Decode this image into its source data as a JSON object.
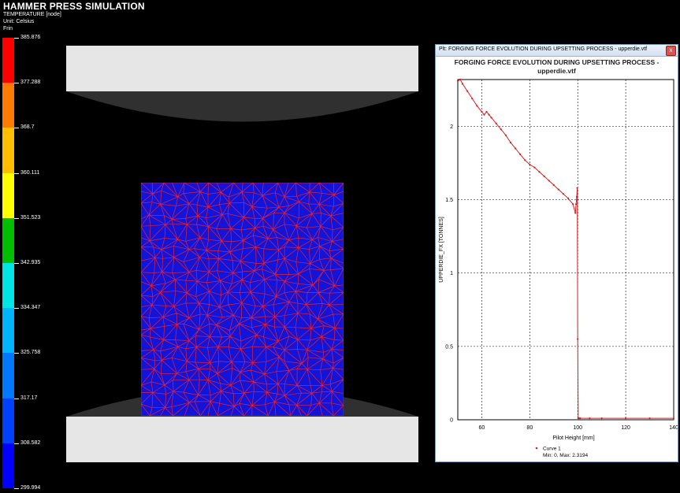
{
  "app": {
    "title": "HAMMER PRESS SIMULATION",
    "field_label": "TEMPERATURE [node]",
    "unit_label": "Unit: Celsius",
    "frame_label": "Frin"
  },
  "legend": {
    "labels": [
      "385.876",
      "377.288",
      "368.7",
      "360.111",
      "351.523",
      "342.935",
      "334.347",
      "325.758",
      "317.17",
      "308.582",
      "299.994"
    ],
    "colors": [
      "#ff0000",
      "#ff7a00",
      "#ffbf00",
      "#ffff00",
      "#00bf00",
      "#00e6e6",
      "#00b4ff",
      "#0078ff",
      "#0040ff",
      "#0000ff"
    ]
  },
  "plot_window": {
    "title": "Plt: FORGING FORCE EVOLUTION DURING UPSETTING PROCESS - upperdie.vtf",
    "close_label": "x",
    "chart_title_line1": "FORGING FORCE EVOLUTION DURING UPSETTING PROCESS -",
    "chart_title_line2": "upperdie.vtf"
  },
  "chart_data": {
    "type": "line",
    "title": "FORGING FORCE EVOLUTION DURING UPSETTING PROCESS - upperdie.vtf",
    "xlabel": "Pilot Height [mm]",
    "ylabel": "UPPERDIE_FX [TONNES]",
    "xlim": [
      50,
      140
    ],
    "ylim": [
      0,
      2.3194
    ],
    "xticks": [
      60,
      80,
      100,
      120,
      140
    ],
    "yticks": [
      0,
      0.5,
      1,
      1.5,
      2
    ],
    "grid": true,
    "legend_placement": "bottom",
    "series": [
      {
        "name": "Curve 1",
        "color": "#d62020",
        "x": [
          50,
          51,
          52,
          54,
          56,
          58,
          60,
          61,
          62,
          63,
          64,
          66,
          68,
          70,
          72,
          74,
          76,
          78,
          80,
          82,
          84,
          86,
          88,
          90,
          92,
          94,
          96,
          98,
          99,
          99.3,
          99.6,
          99.8,
          100,
          100.2,
          100.5,
          101,
          105,
          110,
          120,
          130,
          140
        ],
        "y": [
          2.31,
          2.32,
          2.29,
          2.24,
          2.19,
          2.14,
          2.1,
          2.08,
          2.1,
          2.08,
          2.06,
          2.02,
          1.98,
          1.94,
          1.89,
          1.85,
          1.81,
          1.77,
          1.74,
          1.72,
          1.69,
          1.66,
          1.63,
          1.6,
          1.57,
          1.54,
          1.51,
          1.47,
          1.41,
          1.47,
          1.52,
          1.58,
          0.55,
          0.01,
          0.01,
          0.01,
          0.01,
          0.01,
          0.01,
          0.01,
          0.01
        ]
      }
    ],
    "legend_entries": [
      "Curve 1"
    ],
    "legend_note": "Min: 0, Max: 2.3194"
  }
}
